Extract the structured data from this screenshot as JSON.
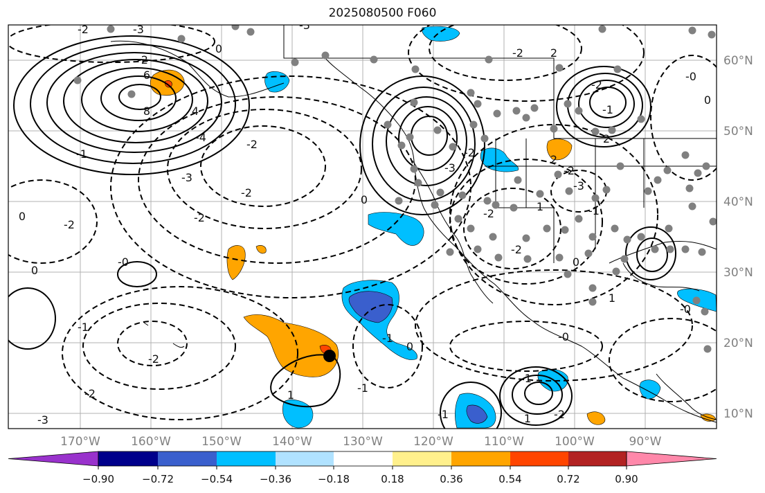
{
  "title": "2025080500 F060",
  "map": {
    "lon_ticks": [
      "170°W",
      "160°W",
      "150°W",
      "140°W",
      "130°W",
      "120°W",
      "110°W",
      "100°W",
      "90°W"
    ],
    "lat_ticks": [
      "60°N",
      "50°N",
      "40°N",
      "30°N",
      "20°N",
      "10°N"
    ],
    "contour_labels": [
      "-2",
      "-3",
      "-3",
      "0",
      "-2",
      "6",
      "8",
      "4",
      "-1",
      "-4",
      "-2",
      "-3",
      "-2",
      "-2",
      "-2",
      "0",
      "-0",
      "0",
      "-1",
      "-2",
      "-2",
      "-3",
      "0",
      "-3",
      "-2",
      "-2",
      "-2",
      "0",
      "1",
      "-0",
      "-1",
      "-3",
      "-2",
      "2",
      "1",
      "-2",
      "2",
      "-2",
      "-1",
      "2",
      "-0",
      "0",
      "-1",
      "-1",
      "1",
      "-2",
      "1",
      "0",
      "-1",
      "-1",
      "-0"
    ],
    "colors": {
      "fill_orange": "#ffa500",
      "fill_red": "#ff4500",
      "fill_lightblue": "#00bfff",
      "fill_blue": "#3a5fcd",
      "dot_gray": "#808080"
    }
  },
  "colorbar": {
    "ticks": [
      "−0.90",
      "−0.72",
      "−0.54",
      "−0.36",
      "−0.18",
      "0.18",
      "0.36",
      "0.54",
      "0.72",
      "0.90"
    ],
    "colors": [
      "#9932cc",
      "#00008b",
      "#3a5fcd",
      "#00bfff",
      "#b0e2ff",
      "#ffffff",
      "#fff08c",
      "#ffa500",
      "#ff4500",
      "#b22222",
      "#ff88aa"
    ]
  }
}
